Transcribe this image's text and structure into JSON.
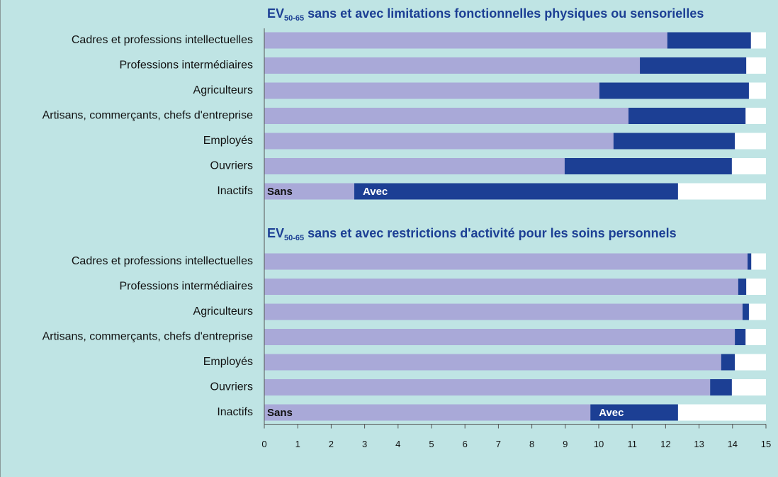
{
  "chart_data": [
    {
      "type": "bar",
      "orientation": "horizontal",
      "stacked": true,
      "title_parts": [
        "EV",
        "50-65",
        " sans et avec limitations fonctionnelles physiques ou sensorielles"
      ],
      "categories": [
        "Cadres et professions intellectuelles",
        "Professions intermédiaires",
        "Agriculteurs",
        "Artisans, commerçants, chefs d'entreprise",
        "Employés",
        "Ouvriers",
        "Inactifs"
      ],
      "series": [
        {
          "name": "Sans",
          "color": "#a9a9d8",
          "values": [
            12.05,
            11.23,
            10.02,
            10.89,
            10.44,
            8.98,
            2.69
          ]
        },
        {
          "name": "Avec",
          "color": "#1c3f94",
          "values": [
            2.5,
            3.18,
            4.47,
            3.5,
            3.63,
            5.0,
            9.68
          ]
        }
      ],
      "xlim": [
        0,
        15
      ]
    },
    {
      "type": "bar",
      "orientation": "horizontal",
      "stacked": true,
      "title_parts": [
        "EV",
        "50-65",
        " sans et avec restrictions d'activité pour les soins personnels"
      ],
      "categories": [
        "Cadres et professions intellectuelles",
        "Professions intermédiaires",
        "Agriculteurs",
        "Artisans, commerçants, chefs d'entreprise",
        "Employés",
        "Ouvriers",
        "Inactifs"
      ],
      "series": [
        {
          "name": "Sans",
          "color": "#a9a9d8",
          "values": [
            14.45,
            14.17,
            14.3,
            14.07,
            13.66,
            13.33,
            9.75
          ]
        },
        {
          "name": "Avec",
          "color": "#1c3f94",
          "values": [
            0.11,
            0.24,
            0.19,
            0.32,
            0.41,
            0.65,
            2.62
          ]
        }
      ],
      "xlim": [
        0,
        15
      ],
      "xticks": [
        0,
        1,
        2,
        3,
        4,
        5,
        6,
        7,
        8,
        9,
        10,
        11,
        12,
        13,
        14,
        15
      ]
    }
  ]
}
